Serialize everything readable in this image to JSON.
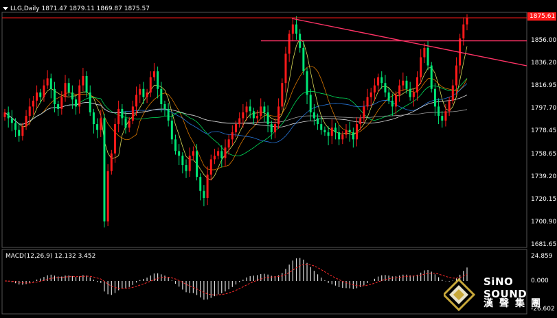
{
  "header": {
    "symbol_line": "LLG,Daily  1871.47 1879.11 1869.87 1875.57"
  },
  "price_axis": {
    "labels": [
      "1875.61",
      "1856.00",
      "1836.20",
      "1816.95",
      "1797.70",
      "1778.45",
      "1758.65",
      "1739.20",
      "1720.15",
      "1700.90",
      "1681.65"
    ],
    "current_price": "1875.61"
  },
  "macd": {
    "header": "MACD(12,26,9) 12.132 3.452",
    "labels": [
      "24.859",
      "0.000",
      "-26.602"
    ]
  },
  "logo": {
    "brand": "SiNO SOUND",
    "chinese": "漢聲集團"
  },
  "colors": {
    "background": "#000000",
    "bull_candle": "#ff1a1a",
    "bear_candle": "#00e676",
    "trendline": "#ff3366",
    "resistance": "#ff3366"
  },
  "chart_data": {
    "type": "candlestick",
    "title": "LLG,Daily",
    "ohlc_last": {
      "open": 1871.47,
      "high": 1879.11,
      "low": 1869.87,
      "close": 1875.57
    },
    "ylim": [
      1681.65,
      1880
    ],
    "horizontal_lines": [
      1875.61,
      1856.0
    ],
    "closes": [
      1795,
      1790,
      1786,
      1780,
      1775,
      1783,
      1792,
      1800,
      1805,
      1812,
      1808,
      1818,
      1824,
      1815,
      1802,
      1798,
      1808,
      1820,
      1812,
      1806,
      1800,
      1818,
      1826,
      1812,
      1795,
      1785,
      1780,
      1790,
      1702,
      1745,
      1760,
      1785,
      1798,
      1790,
      1782,
      1788,
      1800,
      1810,
      1815,
      1808,
      1812,
      1825,
      1830,
      1815,
      1802,
      1798,
      1788,
      1772,
      1762,
      1758,
      1750,
      1745,
      1758,
      1762,
      1740,
      1728,
      1722,
      1742,
      1755,
      1758,
      1762,
      1756,
      1765,
      1772,
      1778,
      1785,
      1790,
      1795,
      1800,
      1796,
      1790,
      1792,
      1800,
      1795,
      1785,
      1778,
      1785,
      1800,
      1820,
      1845,
      1862,
      1870,
      1862,
      1850,
      1830,
      1810,
      1795,
      1790,
      1785,
      1780,
      1778,
      1775,
      1782,
      1778,
      1772,
      1776,
      1780,
      1778,
      1772,
      1785,
      1790,
      1800,
      1808,
      1812,
      1818,
      1825,
      1820,
      1812,
      1805,
      1800,
      1810,
      1818,
      1822,
      1815,
      1808,
      1812,
      1825,
      1842,
      1850,
      1835,
      1815,
      1800,
      1792,
      1788,
      1796,
      1805,
      1818,
      1835,
      1858,
      1870,
      1875.57
    ],
    "macd": {
      "value": 12.132,
      "signal": 3.452,
      "ylim": [
        -26.602,
        24.859
      ]
    }
  }
}
